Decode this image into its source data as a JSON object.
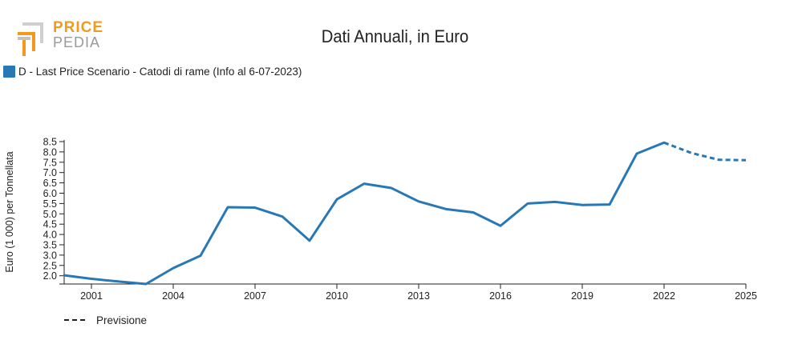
{
  "logo": {
    "line1": "PRICE",
    "line2": "PEDIA",
    "colors": {
      "orange": "#f39a1c",
      "grey": "#9a9a9a"
    }
  },
  "legend": {
    "series_label": "D - Last Price Scenario - Catodi di rame (Info al 6-07-2023)",
    "series_color": "#2878b5",
    "forecast_label": "Previsione"
  },
  "chart_data": {
    "type": "line",
    "title": "Dati Annuali, in Euro",
    "ylabel": "Euro (1 000) per Tonnellata",
    "xlabel": "",
    "xlim": [
      2000,
      2025
    ],
    "ylim": [
      1.6,
      8.5
    ],
    "yticks": [
      2.0,
      2.5,
      3.0,
      3.5,
      4.0,
      4.5,
      5.0,
      5.5,
      6.0,
      6.5,
      7.0,
      7.5,
      8.0,
      8.5
    ],
    "xticks": [
      2001,
      2004,
      2007,
      2010,
      2013,
      2016,
      2019,
      2022,
      2025
    ],
    "grid": false,
    "legend_position": "top-left",
    "series": [
      {
        "name": "D - Last Price Scenario - Catodi di rame (Info al 6-07-2023)",
        "color": "#2878b5",
        "style": "solid",
        "x": [
          2000,
          2001,
          2002,
          2003,
          2004,
          2005,
          2006,
          2007,
          2008,
          2009,
          2010,
          2011,
          2012,
          2013,
          2014,
          2015,
          2016,
          2017,
          2018,
          2019,
          2020,
          2021,
          2022
        ],
        "y": [
          2.02,
          1.85,
          1.72,
          1.6,
          2.37,
          2.97,
          5.32,
          5.3,
          4.87,
          3.7,
          5.7,
          6.46,
          6.25,
          5.6,
          5.23,
          5.07,
          4.42,
          5.5,
          5.58,
          5.43,
          5.45,
          7.92,
          8.45
        ]
      },
      {
        "name": "Previsione",
        "color": "#2878b5",
        "style": "dashed",
        "x": [
          2022,
          2023,
          2024,
          2025
        ],
        "y": [
          8.45,
          7.95,
          7.62,
          7.6
        ]
      }
    ]
  }
}
